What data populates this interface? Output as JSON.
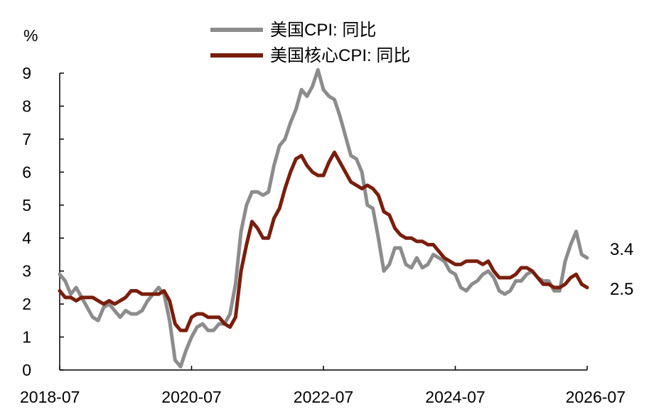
{
  "chart_data": {
    "type": "line",
    "ylabel": "%",
    "ylim": [
      0,
      9
    ],
    "yticks": [
      "0",
      "1",
      "2",
      "3",
      "4",
      "5",
      "6",
      "7",
      "8",
      "9"
    ],
    "xticks": [
      "2018-07",
      "2020-07",
      "2022-07",
      "2024-07",
      "2026-07"
    ],
    "x_start": "2018-07",
    "x_end": "2026-07",
    "grid": false,
    "legend_position": "top-center",
    "series": [
      {
        "name": "美国CPI: 同比",
        "color": "#8c8c8c",
        "end_label": "3.4",
        "values": [
          2.9,
          2.7,
          2.3,
          2.5,
          2.2,
          1.9,
          1.6,
          1.5,
          1.9,
          2.0,
          1.8,
          1.6,
          1.8,
          1.7,
          1.7,
          1.8,
          2.1,
          2.3,
          2.5,
          2.3,
          1.5,
          0.3,
          0.1,
          0.6,
          1.0,
          1.3,
          1.4,
          1.2,
          1.2,
          1.4,
          1.4,
          1.7,
          2.6,
          4.2,
          5.0,
          5.4,
          5.4,
          5.3,
          5.4,
          6.2,
          6.8,
          7.0,
          7.5,
          7.9,
          8.5,
          8.3,
          8.6,
          9.1,
          8.5,
          8.3,
          8.2,
          7.7,
          7.1,
          6.5,
          6.4,
          6.0,
          5.0,
          4.9,
          4.0,
          3.0,
          3.2,
          3.7,
          3.7,
          3.2,
          3.1,
          3.4,
          3.1,
          3.2,
          3.5,
          3.4,
          3.3,
          3.0,
          2.9,
          2.5,
          2.4,
          2.6,
          2.7,
          2.9,
          3.0,
          2.8,
          2.4,
          2.3,
          2.4,
          2.7,
          2.7,
          2.9,
          3.0,
          2.8,
          2.7,
          2.7,
          2.4,
          2.4,
          3.3,
          3.8,
          4.2,
          3.5,
          3.4
        ]
      },
      {
        "name": "美国核心CPI: 同比",
        "color": "#7a1e0c",
        "end_label": "2.5",
        "values": [
          2.4,
          2.2,
          2.2,
          2.1,
          2.2,
          2.2,
          2.2,
          2.1,
          2.0,
          2.1,
          2.0,
          2.1,
          2.2,
          2.4,
          2.4,
          2.3,
          2.3,
          2.3,
          2.3,
          2.4,
          2.1,
          1.4,
          1.2,
          1.2,
          1.6,
          1.7,
          1.7,
          1.6,
          1.6,
          1.6,
          1.4,
          1.3,
          1.6,
          3.0,
          3.8,
          4.5,
          4.3,
          4.0,
          4.0,
          4.6,
          4.9,
          5.5,
          6.0,
          6.4,
          6.5,
          6.2,
          6.0,
          5.9,
          5.9,
          6.3,
          6.6,
          6.3,
          6.0,
          5.7,
          5.6,
          5.5,
          5.6,
          5.5,
          5.3,
          4.8,
          4.7,
          4.3,
          4.1,
          4.0,
          4.0,
          3.9,
          3.9,
          3.8,
          3.8,
          3.6,
          3.4,
          3.3,
          3.2,
          3.2,
          3.3,
          3.3,
          3.3,
          3.2,
          3.3,
          3.0,
          2.8,
          2.8,
          2.8,
          2.9,
          3.1,
          3.1,
          3.0,
          2.8,
          2.6,
          2.6,
          2.5,
          2.5,
          2.6,
          2.8,
          2.9,
          2.6,
          2.5
        ]
      }
    ]
  }
}
